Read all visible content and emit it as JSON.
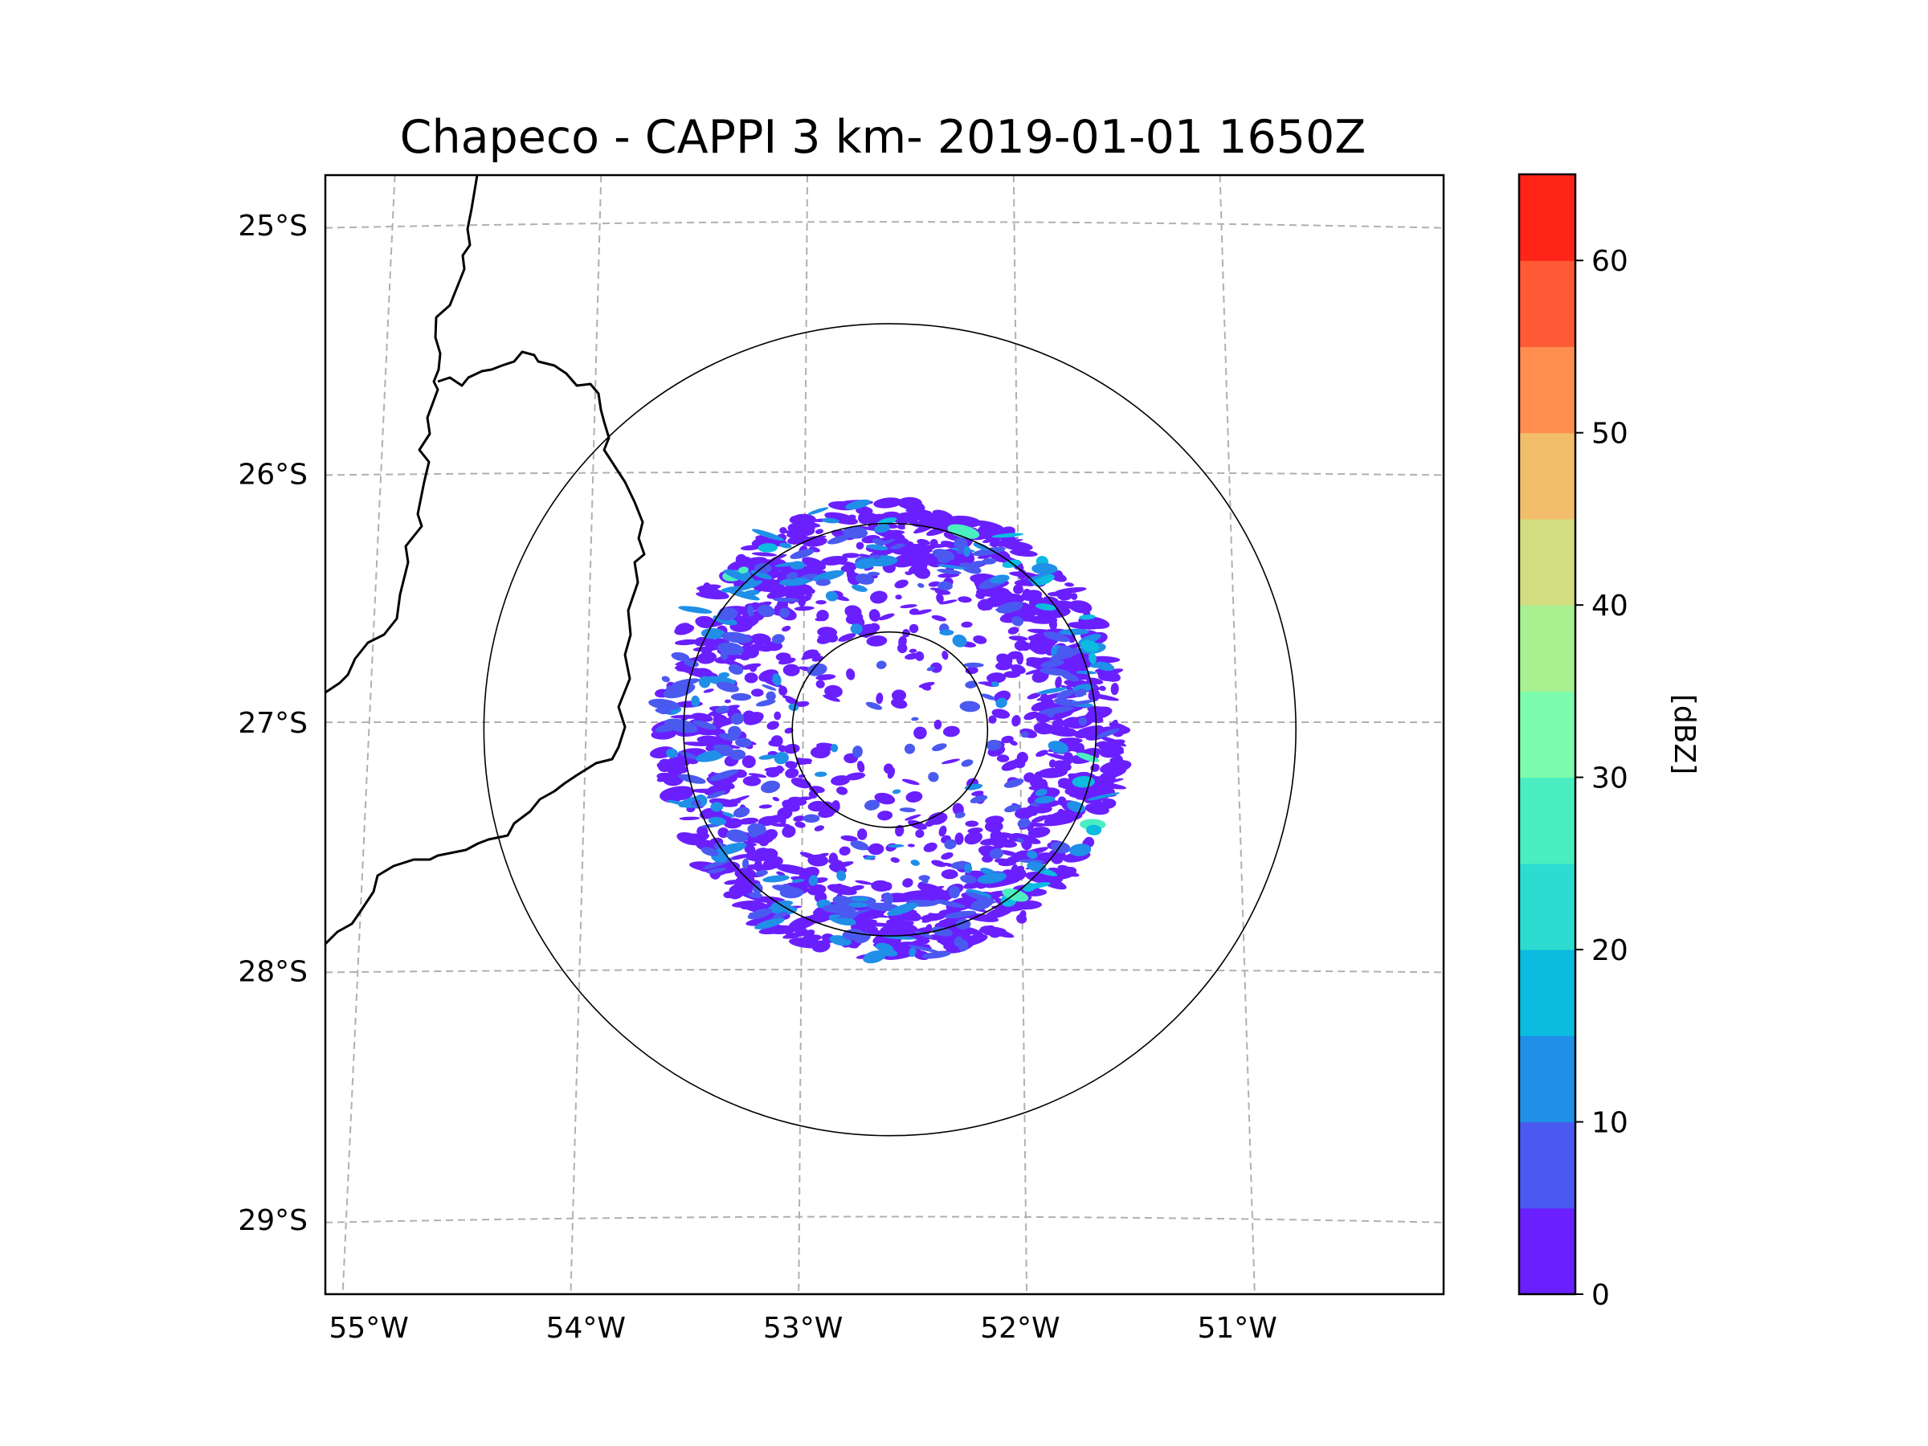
{
  "figure": {
    "title": "Chapeco - CAPPI 3 km- 2019-01-01 1650Z"
  },
  "map": {
    "lon_range": [
      -55.2,
      -50.05
    ],
    "lat_range": [
      -29.3,
      -24.8
    ],
    "radar_center": {
      "lon": -52.6,
      "lat": -27.03
    },
    "range_rings_deg": [
      0.45,
      0.95,
      1.87
    ],
    "lon_ticks": [
      {
        "value": -55,
        "label": "55°W"
      },
      {
        "value": -54,
        "label": "54°W"
      },
      {
        "value": -53,
        "label": "53°W"
      },
      {
        "value": -52,
        "label": "52°W"
      },
      {
        "value": -51,
        "label": "51°W"
      }
    ],
    "lat_ticks": [
      {
        "value": -25,
        "label": "25°S"
      },
      {
        "value": -26,
        "label": "26°S"
      },
      {
        "value": -27,
        "label": "27°S"
      },
      {
        "value": -28,
        "label": "28°S"
      },
      {
        "value": -29,
        "label": "29°S"
      }
    ],
    "border_line_color": "#000000",
    "gridline_color": "#b0b0b0",
    "ring_color": "#000000"
  },
  "colorbar": {
    "label": "[dBZ]",
    "range": [
      0,
      65
    ],
    "levels": [
      0,
      5,
      10,
      15,
      20,
      25,
      30,
      35,
      40,
      45,
      50,
      55,
      60,
      65
    ],
    "colors": [
      "#6a1fff",
      "#4a5af0",
      "#1f8fe8",
      "#0bbbe0",
      "#2ddcd0",
      "#4aeec0",
      "#7cfcac",
      "#a8f090",
      "#d2dc80",
      "#f2be6c",
      "#ff8e50",
      "#ff5a36",
      "#ff2418"
    ],
    "ticks": [
      {
        "value": 0,
        "label": "0"
      },
      {
        "value": 10,
        "label": "10"
      },
      {
        "value": 20,
        "label": "20"
      },
      {
        "value": 30,
        "label": "30"
      },
      {
        "value": 40,
        "label": "40"
      },
      {
        "value": 50,
        "label": "50"
      },
      {
        "value": 60,
        "label": "60"
      }
    ]
  }
}
